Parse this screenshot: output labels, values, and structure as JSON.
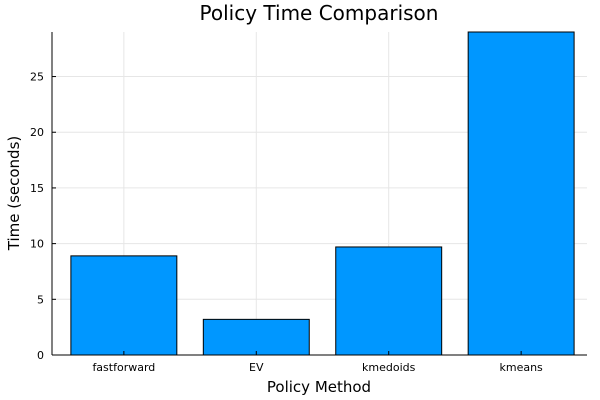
{
  "chart_data": {
    "type": "bar",
    "title": "Policy Time Comparison",
    "xlabel": "Policy Method",
    "ylabel": "Time (seconds)",
    "categories": [
      "fastforward",
      "EV",
      "kmedoids",
      "kmeans"
    ],
    "values": [
      8.9,
      3.2,
      9.7,
      29.0
    ],
    "ylim": [
      0,
      29.0
    ],
    "yticks": [
      0,
      5,
      10,
      15,
      20,
      25
    ],
    "grid": true,
    "bar_color": "#0097FF",
    "bar_edge_color": "#000000"
  }
}
